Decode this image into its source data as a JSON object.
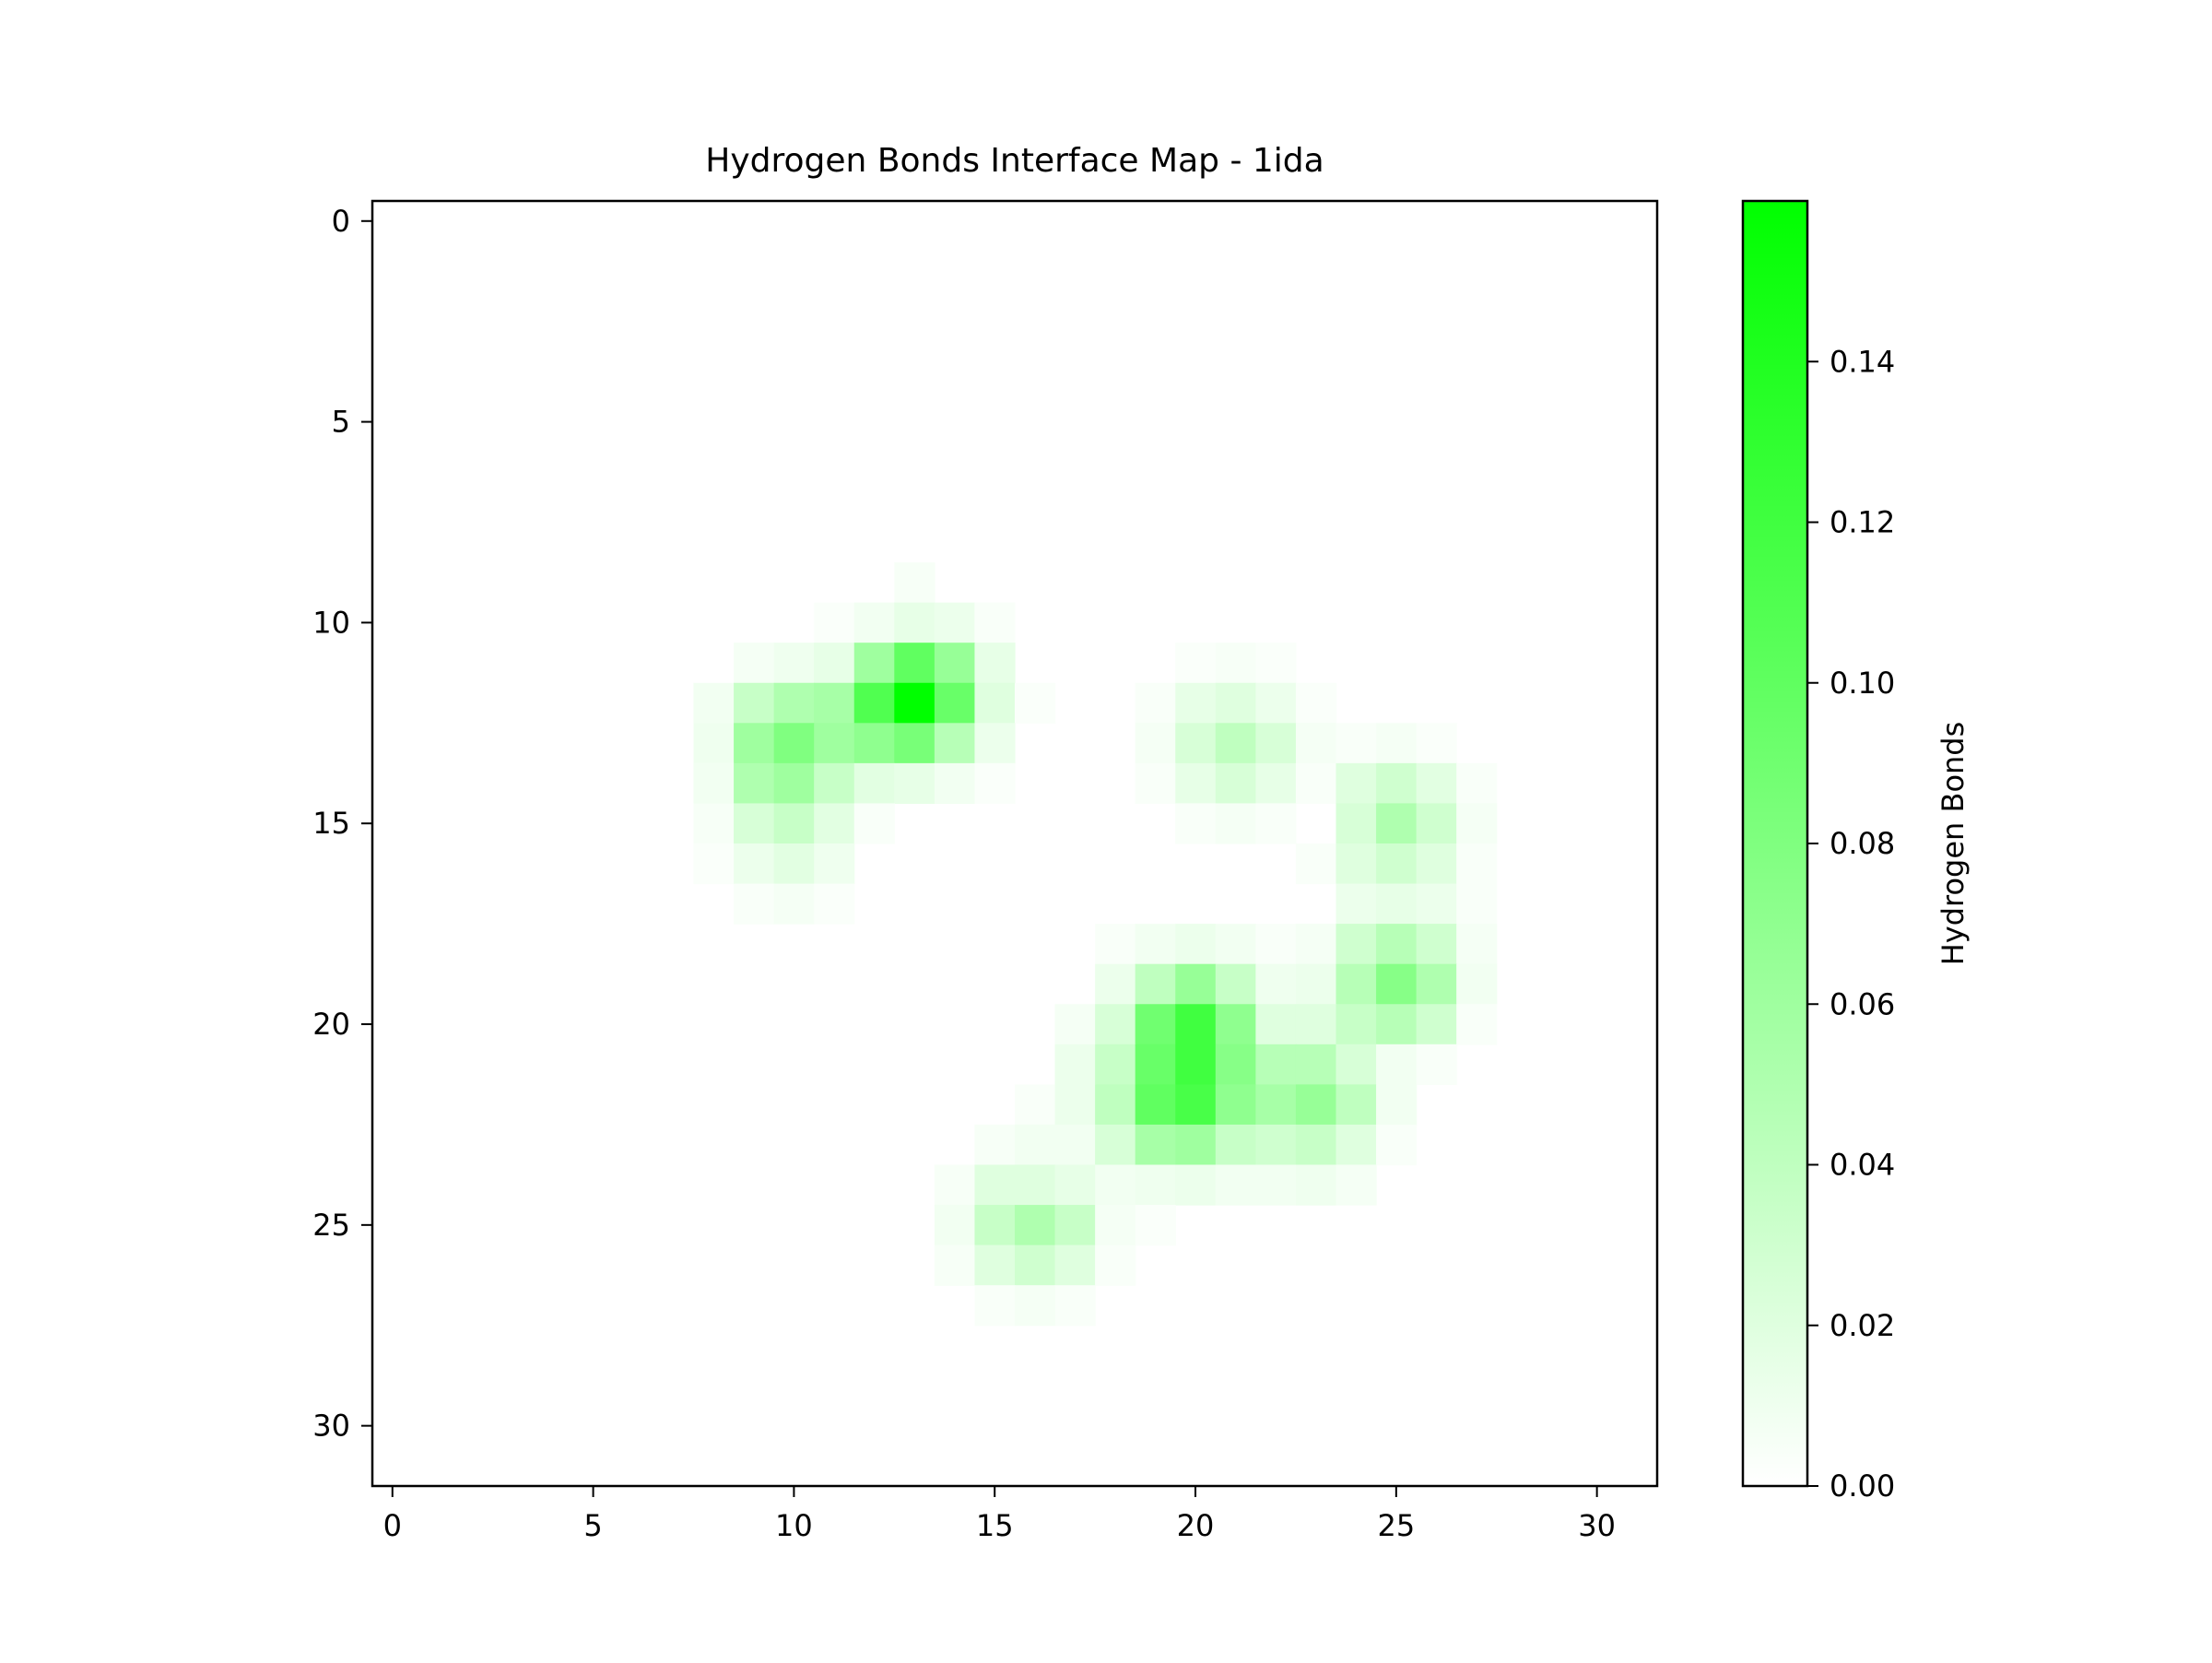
{
  "chart_data": {
    "type": "heatmap",
    "title": "Hydrogen Bonds Interface Map - 1ida",
    "xlabel": "",
    "ylabel": "",
    "colorbar_label": "Hydrogen Bonds",
    "colormap": {
      "low": "#ffffff",
      "high": "#00ff00"
    },
    "xlim": [
      -0.5,
      31.5
    ],
    "ylim": [
      31.5,
      -0.5
    ],
    "vmin": 0,
    "vmax": 0.16,
    "x_ticks": [
      0,
      5,
      10,
      15,
      20,
      25,
      30
    ],
    "y_ticks": [
      0,
      5,
      10,
      15,
      20,
      25,
      30
    ],
    "colorbar_ticks": [
      "0.00",
      "0.02",
      "0.04",
      "0.06",
      "0.08",
      "0.10",
      "0.12",
      "0.14"
    ],
    "grid": false,
    "rows": 32,
    "cols": 32,
    "cells": [
      [
        9,
        13,
        0.005
      ],
      [
        10,
        11,
        0.003
      ],
      [
        10,
        12,
        0.008
      ],
      [
        10,
        13,
        0.015
      ],
      [
        10,
        14,
        0.012
      ],
      [
        10,
        15,
        0.004
      ],
      [
        11,
        9,
        0.006
      ],
      [
        11,
        10,
        0.01
      ],
      [
        11,
        11,
        0.015
      ],
      [
        11,
        12,
        0.06
      ],
      [
        11,
        13,
        0.1
      ],
      [
        11,
        14,
        0.065
      ],
      [
        11,
        15,
        0.015
      ],
      [
        12,
        8,
        0.008
      ],
      [
        12,
        9,
        0.035
      ],
      [
        12,
        10,
        0.05
      ],
      [
        12,
        11,
        0.055
      ],
      [
        12,
        12,
        0.11
      ],
      [
        12,
        13,
        0.16
      ],
      [
        12,
        14,
        0.095
      ],
      [
        12,
        15,
        0.02
      ],
      [
        12,
        16,
        0.003
      ],
      [
        13,
        8,
        0.01
      ],
      [
        13,
        9,
        0.06
      ],
      [
        13,
        10,
        0.08
      ],
      [
        13,
        11,
        0.06
      ],
      [
        13,
        12,
        0.07
      ],
      [
        13,
        13,
        0.085
      ],
      [
        13,
        14,
        0.045
      ],
      [
        13,
        15,
        0.012
      ],
      [
        14,
        8,
        0.008
      ],
      [
        14,
        9,
        0.05
      ],
      [
        14,
        10,
        0.06
      ],
      [
        14,
        11,
        0.035
      ],
      [
        14,
        12,
        0.018
      ],
      [
        14,
        13,
        0.015
      ],
      [
        14,
        14,
        0.008
      ],
      [
        14,
        15,
        0.003
      ],
      [
        15,
        8,
        0.005
      ],
      [
        15,
        9,
        0.025
      ],
      [
        15,
        10,
        0.035
      ],
      [
        15,
        11,
        0.018
      ],
      [
        15,
        12,
        0.004
      ],
      [
        16,
        8,
        0.003
      ],
      [
        16,
        9,
        0.012
      ],
      [
        16,
        10,
        0.018
      ],
      [
        16,
        11,
        0.01
      ],
      [
        17,
        9,
        0.004
      ],
      [
        17,
        10,
        0.006
      ],
      [
        17,
        11,
        0.003
      ],
      [
        11,
        20,
        0.003
      ],
      [
        11,
        21,
        0.005
      ],
      [
        11,
        22,
        0.003
      ],
      [
        12,
        19,
        0.004
      ],
      [
        12,
        20,
        0.015
      ],
      [
        12,
        21,
        0.02
      ],
      [
        12,
        22,
        0.012
      ],
      [
        12,
        23,
        0.003
      ],
      [
        13,
        19,
        0.006
      ],
      [
        13,
        20,
        0.025
      ],
      [
        13,
        21,
        0.04
      ],
      [
        13,
        22,
        0.025
      ],
      [
        13,
        23,
        0.006
      ],
      [
        13,
        24,
        0.004
      ],
      [
        13,
        25,
        0.006
      ],
      [
        13,
        26,
        0.003
      ],
      [
        14,
        19,
        0.004
      ],
      [
        14,
        20,
        0.015
      ],
      [
        14,
        21,
        0.025
      ],
      [
        14,
        22,
        0.015
      ],
      [
        14,
        23,
        0.004
      ],
      [
        14,
        24,
        0.02
      ],
      [
        14,
        25,
        0.03
      ],
      [
        14,
        26,
        0.018
      ],
      [
        14,
        27,
        0.004
      ],
      [
        15,
        20,
        0.004
      ],
      [
        15,
        21,
        0.006
      ],
      [
        15,
        22,
        0.004
      ],
      [
        15,
        24,
        0.025
      ],
      [
        15,
        25,
        0.05
      ],
      [
        15,
        26,
        0.03
      ],
      [
        15,
        27,
        0.006
      ],
      [
        16,
        23,
        0.004
      ],
      [
        16,
        24,
        0.02
      ],
      [
        16,
        25,
        0.03
      ],
      [
        16,
        26,
        0.02
      ],
      [
        16,
        27,
        0.004
      ],
      [
        17,
        24,
        0.012
      ],
      [
        17,
        25,
        0.015
      ],
      [
        17,
        26,
        0.012
      ],
      [
        17,
        27,
        0.004
      ],
      [
        18,
        18,
        0.004
      ],
      [
        18,
        19,
        0.008
      ],
      [
        18,
        20,
        0.012
      ],
      [
        18,
        21,
        0.008
      ],
      [
        18,
        22,
        0.004
      ],
      [
        18,
        23,
        0.006
      ],
      [
        18,
        24,
        0.03
      ],
      [
        18,
        25,
        0.045
      ],
      [
        18,
        26,
        0.03
      ],
      [
        18,
        27,
        0.006
      ],
      [
        19,
        18,
        0.012
      ],
      [
        19,
        19,
        0.04
      ],
      [
        19,
        20,
        0.065
      ],
      [
        19,
        21,
        0.035
      ],
      [
        19,
        22,
        0.01
      ],
      [
        19,
        23,
        0.012
      ],
      [
        19,
        24,
        0.045
      ],
      [
        19,
        25,
        0.075
      ],
      [
        19,
        26,
        0.05
      ],
      [
        19,
        27,
        0.008
      ],
      [
        20,
        17,
        0.006
      ],
      [
        20,
        18,
        0.025
      ],
      [
        20,
        19,
        0.09
      ],
      [
        20,
        20,
        0.12
      ],
      [
        20,
        21,
        0.07
      ],
      [
        20,
        22,
        0.02
      ],
      [
        20,
        23,
        0.02
      ],
      [
        20,
        24,
        0.035
      ],
      [
        20,
        25,
        0.045
      ],
      [
        20,
        26,
        0.03
      ],
      [
        20,
        27,
        0.004
      ],
      [
        21,
        17,
        0.012
      ],
      [
        21,
        18,
        0.035
      ],
      [
        21,
        19,
        0.095
      ],
      [
        21,
        20,
        0.12
      ],
      [
        21,
        21,
        0.075
      ],
      [
        21,
        22,
        0.045
      ],
      [
        21,
        23,
        0.045
      ],
      [
        21,
        24,
        0.025
      ],
      [
        21,
        25,
        0.008
      ],
      [
        21,
        26,
        0.004
      ],
      [
        22,
        16,
        0.004
      ],
      [
        22,
        17,
        0.012
      ],
      [
        22,
        18,
        0.04
      ],
      [
        22,
        19,
        0.1
      ],
      [
        22,
        20,
        0.115
      ],
      [
        22,
        21,
        0.07
      ],
      [
        22,
        22,
        0.055
      ],
      [
        22,
        23,
        0.065
      ],
      [
        22,
        24,
        0.04
      ],
      [
        22,
        25,
        0.008
      ],
      [
        23,
        15,
        0.005
      ],
      [
        23,
        16,
        0.008
      ],
      [
        23,
        17,
        0.008
      ],
      [
        23,
        18,
        0.025
      ],
      [
        23,
        19,
        0.055
      ],
      [
        23,
        20,
        0.06
      ],
      [
        23,
        21,
        0.035
      ],
      [
        23,
        22,
        0.03
      ],
      [
        23,
        23,
        0.035
      ],
      [
        23,
        24,
        0.02
      ],
      [
        23,
        25,
        0.004
      ],
      [
        24,
        14,
        0.005
      ],
      [
        24,
        15,
        0.02
      ],
      [
        24,
        16,
        0.02
      ],
      [
        24,
        17,
        0.015
      ],
      [
        24,
        18,
        0.008
      ],
      [
        24,
        19,
        0.01
      ],
      [
        24,
        20,
        0.012
      ],
      [
        24,
        21,
        0.008
      ],
      [
        24,
        22,
        0.008
      ],
      [
        24,
        23,
        0.01
      ],
      [
        24,
        24,
        0.006
      ],
      [
        25,
        14,
        0.008
      ],
      [
        25,
        15,
        0.035
      ],
      [
        25,
        16,
        0.05
      ],
      [
        25,
        17,
        0.035
      ],
      [
        25,
        18,
        0.006
      ],
      [
        25,
        19,
        0.003
      ],
      [
        26,
        14,
        0.005
      ],
      [
        26,
        15,
        0.02
      ],
      [
        26,
        16,
        0.03
      ],
      [
        26,
        17,
        0.02
      ],
      [
        26,
        18,
        0.004
      ],
      [
        27,
        15,
        0.004
      ],
      [
        27,
        16,
        0.006
      ],
      [
        27,
        17,
        0.004
      ]
    ]
  }
}
